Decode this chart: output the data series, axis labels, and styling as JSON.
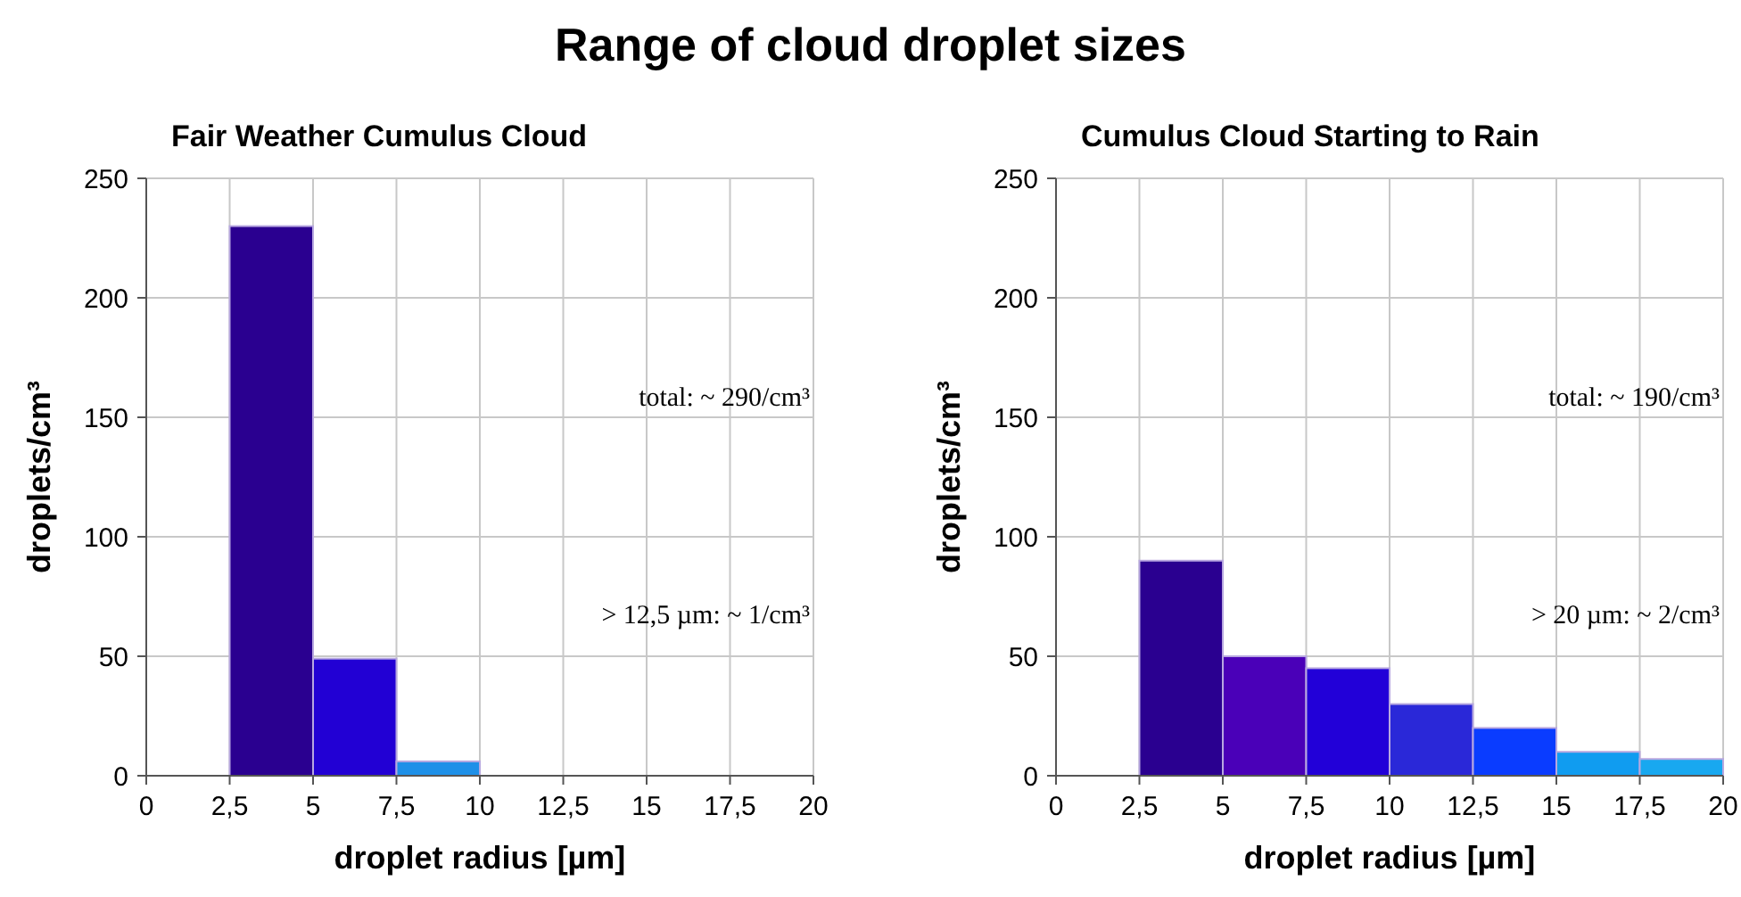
{
  "chart_data": [
    {
      "type": "histogram",
      "title": "Range of cloud droplet sizes",
      "subtitle": "Fair Weather Cumulus Cloud",
      "xlabel": "droplet radius [µm]",
      "ylabel": "droplets/cm³",
      "bins": [
        0,
        2.5,
        5,
        7.5,
        10,
        12.5,
        15,
        17.5,
        20
      ],
      "values": [
        0,
        230,
        49,
        6,
        0,
        0,
        0,
        0
      ],
      "colors": [
        "#1e90e8",
        "#2a0090",
        "#2200d4",
        "#1e90e8",
        "#1e90e8",
        "#1e90e8",
        "#1e90e8",
        "#1e90e8"
      ],
      "xlim": [
        0,
        20
      ],
      "xticks": [
        0,
        {
          "value": 2.5,
          "label": "2,5"
        },
        5,
        {
          "value": 7.5,
          "label": "7,5"
        },
        10,
        {
          "value": 12.5,
          "label": "12,5"
        },
        15,
        {
          "value": 17.5,
          "label": "17,5"
        },
        20
      ],
      "ylim": [
        0,
        250
      ],
      "yticks": [
        0,
        50,
        100,
        150,
        200,
        250
      ],
      "grid": true,
      "annotations": [
        "total: ~ 290/cm³",
        "> 12,5 µm: ~ 1/cm³"
      ]
    },
    {
      "type": "histogram",
      "subtitle": "Cumulus Cloud Starting to Rain",
      "xlabel": "droplet radius [µm]",
      "ylabel": "droplets/cm³",
      "bins": [
        0,
        2.5,
        5,
        7.5,
        10,
        12.5,
        15,
        17.5,
        20
      ],
      "values": [
        0,
        90,
        50,
        45,
        30,
        20,
        10,
        7
      ],
      "colors": [
        "#1e90e8",
        "#2a0090",
        "#4a00b8",
        "#2200d8",
        "#2a28d8",
        "#0a3cff",
        "#109cf0",
        "#18a8f0"
      ],
      "xlim": [
        0,
        20
      ],
      "xticks": [
        0,
        {
          "value": 2.5,
          "label": "2,5"
        },
        5,
        {
          "value": 7.5,
          "label": "7,5"
        },
        10,
        {
          "value": 12.5,
          "label": "12,5"
        },
        15,
        {
          "value": 17.5,
          "label": "17,5"
        },
        20
      ],
      "ylim": [
        0,
        250
      ],
      "yticks": [
        0,
        50,
        100,
        150,
        200,
        250
      ],
      "grid": true,
      "annotations": [
        "total: ~ 190/cm³",
        "> 20 µm: ~ 2/cm³"
      ]
    }
  ]
}
